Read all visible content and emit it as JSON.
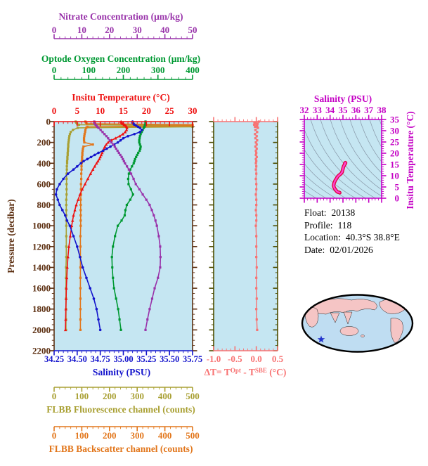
{
  "colors": {
    "nitrate": "#9933AA",
    "oxygen": "#009933",
    "temperature": "#EE1111",
    "salinity": "#1414CC",
    "pressure": "#5C2F11",
    "fluorescence": "#A9A033",
    "backscatter": "#E2761B",
    "delta_t": "#F87272",
    "mid_axis": "#4C4C00",
    "ts_axis": "#C400C4",
    "ts_curve_outer": "#E00040",
    "ts_curve_inner": "#FF44CC",
    "plot_bg": "#C5E6F2",
    "contour": "#8898A8",
    "map_ocean": "#BFDDF2",
    "map_land": "#F5C5C5",
    "map_border": "#000000",
    "star": "#2233CC",
    "text": "#000000"
  },
  "axes": {
    "nitrate": {
      "title": "Nitrate Concentration (μm/kg)",
      "min": 0,
      "max": 50,
      "major_step": 10,
      "minor_step": 2,
      "tick_labels": [
        "0",
        "10",
        "20",
        "30",
        "40",
        "50"
      ]
    },
    "oxygen": {
      "title": "Optode Oxygen Concentration (μm/kg)",
      "min": 0,
      "max": 400,
      "major_step": 100,
      "minor_step": 20,
      "tick_labels": [
        "0",
        "100",
        "200",
        "300",
        "400"
      ]
    },
    "temperature": {
      "title": "Insitu Temperature (°C)",
      "min": 0,
      "max": 30,
      "major_step": 5,
      "minor_step": 1,
      "tick_labels": [
        "0",
        "5",
        "10",
        "15",
        "20",
        "25",
        "30"
      ]
    },
    "salinity": {
      "title": "Salinity (PSU)",
      "min": 34.25,
      "max": 35.75,
      "major_step": 0.25,
      "minor_step": 0.05,
      "tick_labels": [
        "34.25",
        "34.50",
        "34.75",
        "35.00",
        "35.25",
        "35.50",
        "35.75"
      ]
    },
    "fluorescence": {
      "title": "FLBB Fluorescence channel (counts)",
      "min": 0,
      "max": 500,
      "major_step": 100,
      "minor_step": 20,
      "tick_labels": [
        "0",
        "100",
        "200",
        "300",
        "400",
        "500"
      ]
    },
    "backscatter": {
      "title": "FLBB Backscatter channel (counts)",
      "min": 0,
      "max": 500,
      "major_step": 100,
      "minor_step": 20,
      "tick_labels": [
        "0",
        "100",
        "200",
        "300",
        "400",
        "500"
      ]
    },
    "pressure": {
      "title": "Pressure (decibar)",
      "min": 0,
      "max": 2200,
      "major_step": 200,
      "minor_step": 50,
      "tick_labels": [
        "0",
        "200",
        "400",
        "600",
        "800",
        "1000",
        "1200",
        "1400",
        "1600",
        "1800",
        "2000",
        "2200"
      ]
    },
    "delta_t": {
      "title_pre": "ΔT= T",
      "title_sup1": "Opt",
      "title_mid": " - T",
      "title_sup2": "SBE",
      "title_post": " (°C)",
      "min": -1.0,
      "max": 0.5,
      "major_step": 0.5,
      "minor_step": 0.1,
      "tick_labels": [
        "-1.0",
        "-0.5",
        "0.0",
        "0.5"
      ]
    },
    "ts_salinity": {
      "title": "Salinity (PSU)",
      "min": 32,
      "max": 38,
      "major_step": 1,
      "minor_step": 0.25,
      "tick_labels": [
        "32",
        "33",
        "34",
        "35",
        "36",
        "37",
        "38"
      ]
    },
    "ts_temperature": {
      "title": "Insitu Temperature (°C)",
      "min": 0,
      "max": 35,
      "major_step": 5,
      "minor_step": 1,
      "tick_labels": [
        "0",
        "5",
        "10",
        "15",
        "20",
        "25",
        "30",
        "35"
      ]
    }
  },
  "metadata": {
    "rows": [
      {
        "label": "Float:",
        "value": "20138"
      },
      {
        "label": "Profile:",
        "value": "118"
      },
      {
        "label": "Location:",
        "value": "40.3°S 38.8°E"
      },
      {
        "label": "Date:",
        "value": "02/01/2026"
      }
    ]
  },
  "chart_data": [
    {
      "id": "profile-plot",
      "type": "line",
      "orientation": "depth-profile",
      "ylabel": "Pressure (decibar)",
      "ylim": [
        0,
        2200
      ],
      "grid": false,
      "pressure": [
        0,
        10,
        20,
        30,
        40,
        50,
        60,
        80,
        100,
        120,
        140,
        160,
        180,
        200,
        220,
        240,
        260,
        280,
        300,
        320,
        340,
        360,
        380,
        400,
        430,
        460,
        500,
        550,
        600,
        650,
        700,
        750,
        800,
        850,
        900,
        950,
        1000,
        1100,
        1200,
        1300,
        1400,
        1500,
        1600,
        1700,
        1800,
        1900,
        2000
      ],
      "series": [
        {
          "name": "Insitu Temperature",
          "units": "°C",
          "color_key": "temperature",
          "marker": "triangle",
          "range": [
            0,
            30
          ],
          "values": [
            14.5,
            14.6,
            14.8,
            15.2,
            15.5,
            15.7,
            15.8,
            15.7,
            15.4,
            14.9,
            14.2,
            13.3,
            12.4,
            11.7,
            11.3,
            11.0,
            10.8,
            10.6,
            10.4,
            10.2,
            10.0,
            9.8,
            9.5,
            9.2,
            8.8,
            8.4,
            7.9,
            7.3,
            6.7,
            6.1,
            5.6,
            5.2,
            4.8,
            4.5,
            4.2,
            4.0,
            3.8,
            3.5,
            3.2,
            3.0,
            2.85,
            2.75,
            2.65,
            2.6,
            2.55,
            2.5,
            2.45
          ]
        },
        {
          "name": "Salinity",
          "units": "PSU",
          "color_key": "salinity",
          "marker": "circle",
          "range": [
            34.25,
            35.75
          ],
          "values": [
            35.1,
            35.1,
            35.11,
            35.12,
            35.14,
            35.16,
            35.18,
            35.2,
            35.18,
            35.12,
            35.05,
            35.0,
            34.97,
            34.94,
            34.9,
            34.86,
            34.82,
            34.78,
            34.73,
            34.69,
            34.65,
            34.61,
            34.57,
            34.54,
            34.5,
            34.46,
            34.4,
            34.35,
            34.31,
            34.28,
            34.27,
            34.29,
            34.31,
            34.34,
            34.37,
            34.39,
            34.42,
            34.46,
            34.5,
            34.53,
            34.56,
            34.6,
            34.64,
            34.68,
            34.71,
            34.73,
            34.75
          ]
        },
        {
          "name": "Optode Oxygen Concentration",
          "units": "μm/kg",
          "color_key": "oxygen",
          "marker": "square",
          "range": [
            0,
            400
          ],
          "values": [
            264,
            264,
            264,
            263,
            262,
            261,
            259,
            256,
            253,
            250,
            248,
            247,
            246,
            246,
            248,
            250,
            249,
            247,
            243,
            240,
            237,
            234,
            232,
            230,
            225,
            220,
            216,
            214,
            215,
            222,
            228,
            220,
            210,
            206,
            204,
            195,
            184,
            176,
            170,
            167,
            168,
            170,
            173,
            179,
            185,
            189,
            193
          ]
        },
        {
          "name": "Nitrate Concentration",
          "units": "μm/kg",
          "color_key": "nitrate",
          "marker": "square",
          "range": [
            0,
            50
          ],
          "values": [
            14.5,
            14.5,
            14.7,
            15.0,
            15.3,
            15.6,
            16.0,
            16.8,
            17.5,
            18.2,
            18.9,
            19.5,
            20.1,
            20.7,
            21.3,
            21.9,
            22.4,
            22.9,
            23.4,
            23.9,
            24.4,
            24.8,
            25.2,
            25.6,
            26.3,
            27.0,
            27.8,
            28.7,
            29.5,
            30.8,
            32.0,
            33.3,
            34.5,
            35.3,
            36.0,
            36.6,
            37.1,
            37.8,
            38.3,
            38.4,
            38.3,
            37.5,
            36.3,
            35.4,
            34.5,
            33.7,
            33.0
          ]
        },
        {
          "name": "FLBB Fluorescence channel",
          "units": "counts",
          "color_key": "fluorescence",
          "marker": "square",
          "range": [
            0,
            500
          ],
          "values": [
            78,
            80,
            83,
            90,
            500,
            500,
            85,
            68,
            60,
            57,
            55,
            54,
            53,
            52,
            51,
            51,
            50,
            50,
            49,
            49,
            48,
            48,
            47,
            47,
            46,
            46,
            45,
            45,
            45,
            45,
            45,
            44,
            44,
            44,
            44,
            44,
            44,
            44,
            44,
            44,
            43,
            43,
            43,
            43,
            43,
            43,
            43
          ]
        },
        {
          "name": "FLBB Backscatter channel",
          "units": "counts",
          "color_key": "backscatter",
          "marker": "square",
          "range": [
            0,
            500
          ],
          "values": [
            113,
            115,
            118,
            500,
            500,
            120,
            116,
            113,
            112,
            110,
            109,
            108,
            108,
            109,
            140,
            106,
            104,
            103,
            102,
            102,
            101,
            101,
            100,
            100,
            99,
            99,
            98,
            98,
            97,
            97,
            97,
            96,
            96,
            96,
            96,
            96,
            96,
            95,
            95,
            95,
            95,
            95,
            95,
            95,
            95,
            95,
            95
          ]
        }
      ]
    },
    {
      "id": "delta-t-plot",
      "type": "line",
      "xlabel": "ΔT= TOpt - TSBE (°C)",
      "xlim": [
        -1.0,
        0.5
      ],
      "color_key": "delta_t",
      "pressure_levels": "same_as_profile_plot",
      "values": [
        0.06,
        -0.04,
        0.03,
        -0.05,
        0.02,
        -0.03,
        0.04,
        -0.02,
        0.02,
        -0.03,
        0.01,
        -0.02,
        0.02,
        -0.01,
        0.01,
        -0.02,
        0.01,
        -0.01,
        0.0,
        -0.01,
        0.01,
        -0.01,
        0.0,
        -0.01,
        0.0,
        -0.01,
        0.0,
        -0.01,
        0.0,
        0.0,
        -0.01,
        0.0,
        0.0,
        -0.01,
        0.0,
        0.0,
        -0.01,
        0.0,
        0.0,
        0.0,
        0.01,
        0.0,
        0.0,
        0.01,
        0.0,
        0.01,
        0.02
      ]
    },
    {
      "id": "ts-diagram",
      "type": "line",
      "xlabel": "Salinity (PSU)",
      "ylabel": "Insitu Temperature (°C)",
      "xlim": [
        32,
        38
      ],
      "ylim": [
        0,
        35
      ],
      "background_contours": "isopycnals",
      "points": [
        [
          35.1,
          14.5
        ],
        [
          35.14,
          15.5
        ],
        [
          35.18,
          15.8
        ],
        [
          35.2,
          15.7
        ],
        [
          35.18,
          15.4
        ],
        [
          35.05,
          14.2
        ],
        [
          34.97,
          12.4
        ],
        [
          34.94,
          11.7
        ],
        [
          34.86,
          11.0
        ],
        [
          34.78,
          10.6
        ],
        [
          34.69,
          10.2
        ],
        [
          34.57,
          9.5
        ],
        [
          34.54,
          9.2
        ],
        [
          34.46,
          8.4
        ],
        [
          34.4,
          7.9
        ],
        [
          34.31,
          6.7
        ],
        [
          34.27,
          5.6
        ],
        [
          34.31,
          4.8
        ],
        [
          34.37,
          4.2
        ],
        [
          34.42,
          3.8
        ],
        [
          34.5,
          3.2
        ],
        [
          34.56,
          2.85
        ],
        [
          34.64,
          2.65
        ],
        [
          34.71,
          2.55
        ],
        [
          34.75,
          2.45
        ]
      ]
    }
  ]
}
